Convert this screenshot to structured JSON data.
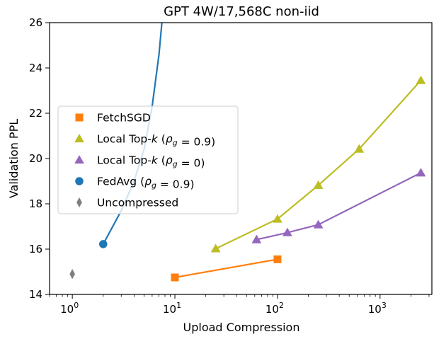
{
  "chart_data": {
    "type": "line",
    "title": "GPT 4W/17,568C non-iid",
    "xlabel": "Upload Compression",
    "ylabel": "Validation PPL",
    "xscale": "log",
    "xlim": [
      0.6,
      3200
    ],
    "ylim": [
      14,
      26
    ],
    "grid": false,
    "legend_position": "center-left",
    "x_ticks": [
      {
        "value": 1,
        "base": "10",
        "exp": "0"
      },
      {
        "value": 10,
        "base": "10",
        "exp": "1"
      },
      {
        "value": 100,
        "base": "10",
        "exp": "2"
      },
      {
        "value": 1000,
        "base": "10",
        "exp": "3"
      }
    ],
    "y_ticks": [
      14,
      16,
      18,
      20,
      22,
      24,
      26
    ],
    "series": [
      {
        "name": "FetchSGD",
        "legend_parts": [
          {
            "t": "FetchSGD"
          }
        ],
        "color": "#ff7f0e",
        "marker": "square",
        "x": [
          10,
          100
        ],
        "y": [
          14.75,
          15.55
        ]
      },
      {
        "name": "Local Top-k (ρg = 0.9)",
        "legend_parts": [
          {
            "t": "Local Top-"
          },
          {
            "t": "k",
            "i": true
          },
          {
            "t": " ("
          },
          {
            "t": "ρ",
            "i": true
          },
          {
            "t": "g",
            "i": true,
            "sub": true
          },
          {
            "t": " = 0.9)"
          }
        ],
        "color": "#bcbd22",
        "marker": "triangle",
        "x": [
          25,
          100,
          250,
          625,
          2500
        ],
        "y": [
          16.02,
          17.33,
          18.82,
          20.42,
          23.45
        ]
      },
      {
        "name": "Local Top-k (ρg = 0)",
        "legend_parts": [
          {
            "t": "Local Top-"
          },
          {
            "t": "k",
            "i": true
          },
          {
            "t": " ("
          },
          {
            "t": "ρ",
            "i": true
          },
          {
            "t": "g",
            "i": true,
            "sub": true
          },
          {
            "t": " = 0)"
          }
        ],
        "color": "#9467bd",
        "marker": "triangle",
        "x": [
          62.5,
          125,
          250,
          2500
        ],
        "y": [
          16.42,
          16.73,
          17.08,
          19.37
        ]
      },
      {
        "name": "FedAvg (ρg = 0.9)",
        "legend_parts": [
          {
            "t": "FedAvg ("
          },
          {
            "t": "ρ",
            "i": true
          },
          {
            "t": "g",
            "i": true,
            "sub": true
          },
          {
            "t": " = 0.9)"
          }
        ],
        "color": "#1f77b4",
        "marker": "circle",
        "x": [
          2,
          3,
          4,
          5,
          6,
          7,
          8
        ],
        "y": [
          16.22,
          17.7,
          19.0,
          20.4,
          22.3,
          24.6,
          27.5
        ]
      },
      {
        "name": "Uncompressed",
        "legend_parts": [
          {
            "t": "Uncompressed"
          }
        ],
        "color": "#7f7f7f",
        "marker": "diamond",
        "x": [
          1
        ],
        "y": [
          14.9
        ]
      }
    ]
  }
}
